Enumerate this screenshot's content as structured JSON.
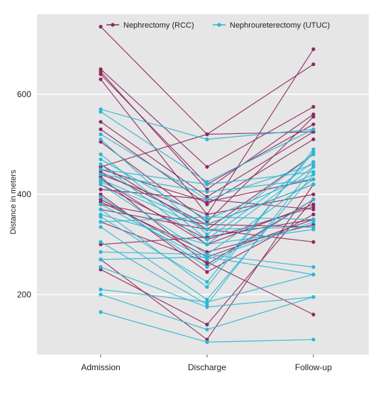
{
  "chart_data": {
    "type": "line",
    "title": "",
    "xlabel": "",
    "ylabel": "Distance in meters",
    "categories": [
      "Admission",
      "Discharge",
      "Follow-up"
    ],
    "yticks": [
      200,
      400,
      600
    ],
    "ylim": [
      80,
      760
    ],
    "grid": "horizontal",
    "legend_position": "top",
    "colors": {
      "background": "#e6e6e6",
      "grid": "#ffffff",
      "rcc": "#8c2a5e",
      "utuc": "#2bb6d4"
    },
    "series": [
      {
        "name": "Nephrectomy (RCC)",
        "color": "#8c2a5e",
        "lines": [
          [
            735,
            520,
            660
          ],
          [
            650,
            455,
            575
          ],
          [
            645,
            410,
            560
          ],
          [
            640,
            420,
            540
          ],
          [
            630,
            360,
            690
          ],
          [
            545,
            395,
            525
          ],
          [
            530,
            380,
            510
          ],
          [
            505,
            345,
            555
          ],
          [
            460,
            330,
            480
          ],
          [
            455,
            520,
            525
          ],
          [
            450,
            385,
            430
          ],
          [
            445,
            340,
            420
          ],
          [
            440,
            360,
            400
          ],
          [
            435,
            260,
            390
          ],
          [
            430,
            300,
            380
          ],
          [
            420,
            310,
            375
          ],
          [
            410,
            390,
            370
          ],
          [
            400,
            245,
            360
          ],
          [
            390,
            275,
            350
          ],
          [
            385,
            285,
            340
          ],
          [
            380,
            340,
            335
          ],
          [
            370,
            330,
            305
          ],
          [
            345,
            265,
            160
          ],
          [
            300,
            315,
            350
          ],
          [
            270,
            110,
            420
          ],
          [
            250,
            140,
            390
          ]
        ]
      },
      {
        "name": "Nephroureterectomy (UTUC)",
        "color": "#2bb6d4",
        "lines": [
          [
            570,
            510,
            530
          ],
          [
            565,
            425,
            530
          ],
          [
            520,
            390,
            460
          ],
          [
            510,
            320,
            480
          ],
          [
            480,
            310,
            465
          ],
          [
            470,
            350,
            440
          ],
          [
            460,
            300,
            455
          ],
          [
            450,
            420,
            445
          ],
          [
            440,
            405,
            430
          ],
          [
            430,
            340,
            420
          ],
          [
            425,
            330,
            335
          ],
          [
            420,
            280,
            430
          ],
          [
            395,
            255,
            390
          ],
          [
            380,
            270,
            345
          ],
          [
            370,
            215,
            490
          ],
          [
            360,
            300,
            330
          ],
          [
            355,
            225,
            485
          ],
          [
            345,
            355,
            350
          ],
          [
            335,
            190,
            440
          ],
          [
            305,
            180,
            455
          ],
          [
            285,
            280,
            255
          ],
          [
            270,
            275,
            240
          ],
          [
            255,
            175,
            195
          ],
          [
            210,
            185,
            240
          ],
          [
            200,
            130,
            195
          ],
          [
            165,
            105,
            110
          ]
        ]
      }
    ]
  }
}
